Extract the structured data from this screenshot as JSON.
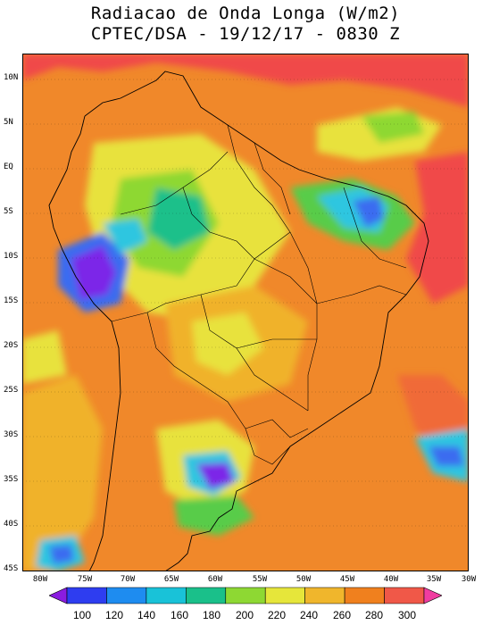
{
  "title": {
    "line1": "Radiacao de Onda Longa (W/m2)",
    "line2": "CPTEC/DSA - 19/12/17 - 0830 Z"
  },
  "map": {
    "lat_labels": [
      "10N",
      "5N",
      "EQ",
      "5S",
      "10S",
      "15S",
      "20S",
      "25S",
      "30S",
      "35S",
      "40S",
      "45S"
    ],
    "lon_labels": [
      "80W",
      "75W",
      "70W",
      "65W",
      "60W",
      "55W",
      "50W",
      "45W",
      "40W",
      "35W",
      "30W"
    ],
    "extent": {
      "lon_min": -82,
      "lon_max": -30,
      "lat_min": -45,
      "lat_max": 12
    }
  },
  "colorbar": {
    "labels": [
      "100",
      "120",
      "140",
      "160",
      "180",
      "200",
      "220",
      "240",
      "260",
      "280",
      "300"
    ],
    "colors": [
      "#8a1ce0",
      "#2e3df0",
      "#1e8cf0",
      "#19c2d8",
      "#1ac08a",
      "#8ed833",
      "#e6e63a",
      "#f0b62c",
      "#f0801e",
      "#f05848",
      "#f03ca0"
    ]
  },
  "palette": {
    "cold": "#7b28e8",
    "blue": "#3a6cf0",
    "cyan": "#2ec6e0",
    "green": "#58cc4a",
    "yellow": "#e8e23c",
    "gold": "#f0b22a",
    "orange": "#f0882a",
    "warm": "#f06a38",
    "hot": "#f04848"
  }
}
